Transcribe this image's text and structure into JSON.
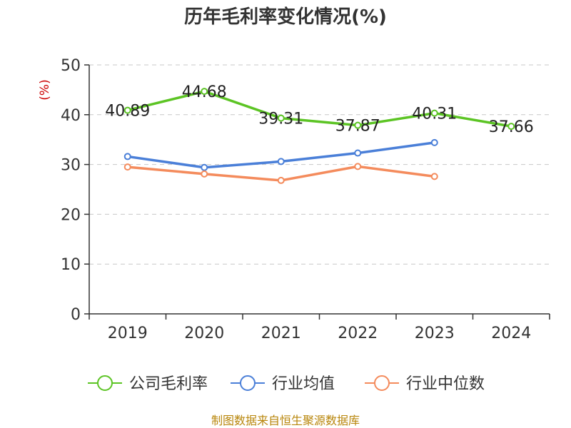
{
  "chart_data": {
    "type": "line",
    "title": "历年毛利率变化情况(%)",
    "unit": "(%)",
    "categories": [
      "2019",
      "2020",
      "2021",
      "2022",
      "2023",
      "2024"
    ],
    "ylim": [
      0,
      50
    ],
    "yticks": [
      0,
      10,
      20,
      30,
      40,
      50
    ],
    "grid": true,
    "legend_position": "bottom",
    "series": [
      {
        "name": "公司毛利率",
        "color": "#5cc424",
        "values": [
          40.89,
          44.68,
          39.31,
          37.87,
          40.31,
          37.66
        ],
        "labels": [
          "40.89",
          "44.68",
          "39.31",
          "37.87",
          "40.31",
          "37.66"
        ]
      },
      {
        "name": "行业均值",
        "color": "#4a7fd8",
        "values": [
          31.6,
          29.4,
          30.6,
          32.3,
          34.4,
          null
        ]
      },
      {
        "name": "行业中位数",
        "color": "#f48b5c",
        "values": [
          29.5,
          28.1,
          26.8,
          29.6,
          27.6,
          null
        ]
      }
    ],
    "source": "制图数据来自恒生聚源数据库"
  }
}
